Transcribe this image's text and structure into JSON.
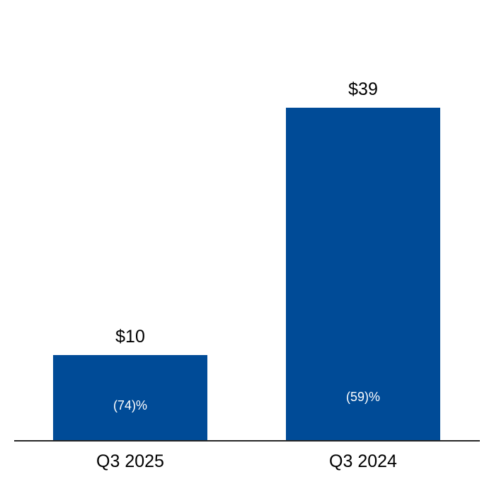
{
  "chart_data": {
    "type": "bar",
    "categories": [
      "Q3 2025",
      "Q3 2024"
    ],
    "values": [
      10,
      39
    ],
    "value_labels": [
      "$10",
      "$39"
    ],
    "inner_labels": [
      "(74)%",
      "(59)%"
    ],
    "title": "",
    "xlabel": "",
    "ylabel": "",
    "ylim": [
      0,
      39
    ],
    "grid": false,
    "legend": false,
    "colors": {
      "bar_fill": "#004b97",
      "inner_label_text": "#ffffff",
      "label_text": "#000000",
      "axis_line": "#262626",
      "background": "#ffffff"
    }
  }
}
